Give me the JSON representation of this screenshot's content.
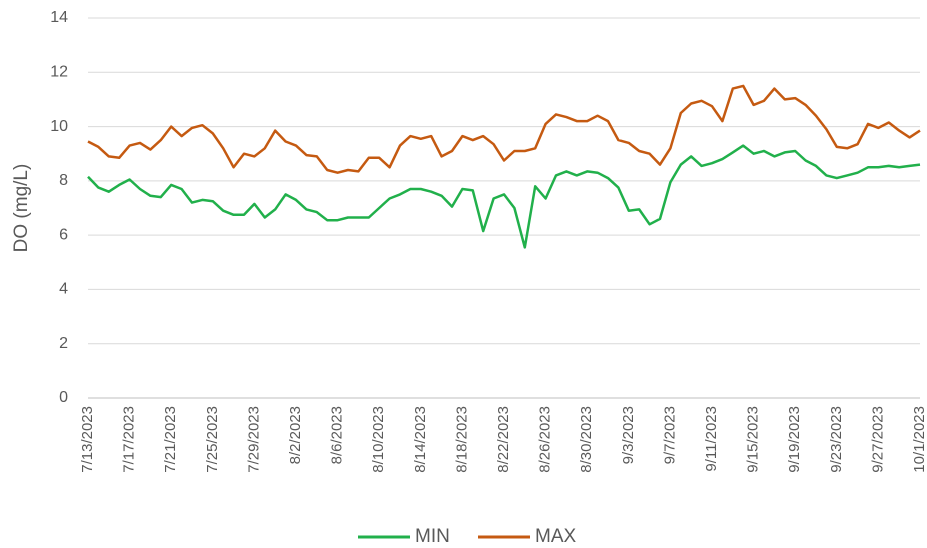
{
  "chart_data": {
    "type": "line",
    "y_label": "DO (mg/L)",
    "categories": [
      "7/13/2023",
      null,
      null,
      null,
      "7/17/2023",
      null,
      null,
      null,
      "7/21/2023",
      null,
      null,
      null,
      "7/25/2023",
      null,
      null,
      null,
      "7/29/2023",
      null,
      null,
      null,
      "8/2/2023",
      null,
      null,
      null,
      "8/6/2023",
      null,
      null,
      null,
      "8/10/2023",
      null,
      null,
      null,
      "8/14/2023",
      null,
      null,
      null,
      "8/18/2023",
      null,
      null,
      null,
      "8/22/2023",
      null,
      null,
      null,
      "8/26/2023",
      null,
      null,
      null,
      "8/30/2023",
      null,
      null,
      null,
      "9/3/2023",
      null,
      null,
      null,
      "9/7/2023",
      null,
      null,
      null,
      "9/11/2023",
      null,
      null,
      null,
      "9/15/2023",
      null,
      null,
      null,
      "9/19/2023",
      null,
      null,
      null,
      "9/23/2023",
      null,
      null,
      null,
      "9/27/2023",
      null,
      null,
      null,
      "10/1/2023"
    ],
    "series": [
      {
        "name": "MIN",
        "color": "#21b04b",
        "values": [
          8.15,
          7.75,
          7.6,
          7.85,
          8.05,
          7.7,
          7.45,
          7.4,
          7.85,
          7.7,
          7.2,
          7.3,
          7.25,
          6.9,
          6.75,
          6.75,
          7.15,
          6.65,
          6.95,
          7.5,
          7.3,
          6.95,
          6.85,
          6.55,
          6.55,
          6.65,
          6.65,
          6.65,
          7.0,
          7.35,
          7.5,
          7.7,
          7.7,
          7.6,
          7.45,
          7.05,
          7.7,
          7.65,
          6.15,
          7.35,
          7.5,
          7.0,
          5.55,
          7.8,
          7.35,
          8.2,
          8.35,
          8.2,
          8.35,
          8.3,
          8.1,
          7.75,
          6.9,
          6.95,
          6.4,
          6.6,
          7.95,
          8.6,
          8.9,
          8.55,
          8.65,
          8.8,
          9.05,
          9.3,
          9.0,
          9.1,
          8.9,
          9.05,
          9.1,
          8.75,
          8.55,
          8.2,
          8.1,
          8.2,
          8.3,
          8.5,
          8.5,
          8.55,
          8.5,
          8.55,
          8.6
        ]
      },
      {
        "name": "MAX",
        "color": "#c55a11",
        "values": [
          9.45,
          9.25,
          8.9,
          8.85,
          9.3,
          9.4,
          9.15,
          9.5,
          10.0,
          9.65,
          9.95,
          10.05,
          9.75,
          9.2,
          8.5,
          9.0,
          8.9,
          9.2,
          9.85,
          9.45,
          9.3,
          8.95,
          8.9,
          8.4,
          8.3,
          8.4,
          8.35,
          8.85,
          8.85,
          8.5,
          9.3,
          9.65,
          9.55,
          9.65,
          8.9,
          9.1,
          9.65,
          9.5,
          9.65,
          9.35,
          8.75,
          9.1,
          9.1,
          9.2,
          10.1,
          10.45,
          10.35,
          10.2,
          10.2,
          10.4,
          10.2,
          9.5,
          9.4,
          9.1,
          9.0,
          8.6,
          9.2,
          10.5,
          10.85,
          10.95,
          10.75,
          10.2,
          11.4,
          11.5,
          10.8,
          10.95,
          11.4,
          11.0,
          11.05,
          10.8,
          10.4,
          9.9,
          9.25,
          9.2,
          9.35,
          10.1,
          9.95,
          10.15,
          9.85,
          9.6,
          9.85
        ]
      }
    ],
    "ylim": [
      0,
      14
    ],
    "yticks": [
      0,
      2,
      4,
      6,
      8,
      10,
      12,
      14
    ],
    "grid": true,
    "legend": "bottom"
  }
}
